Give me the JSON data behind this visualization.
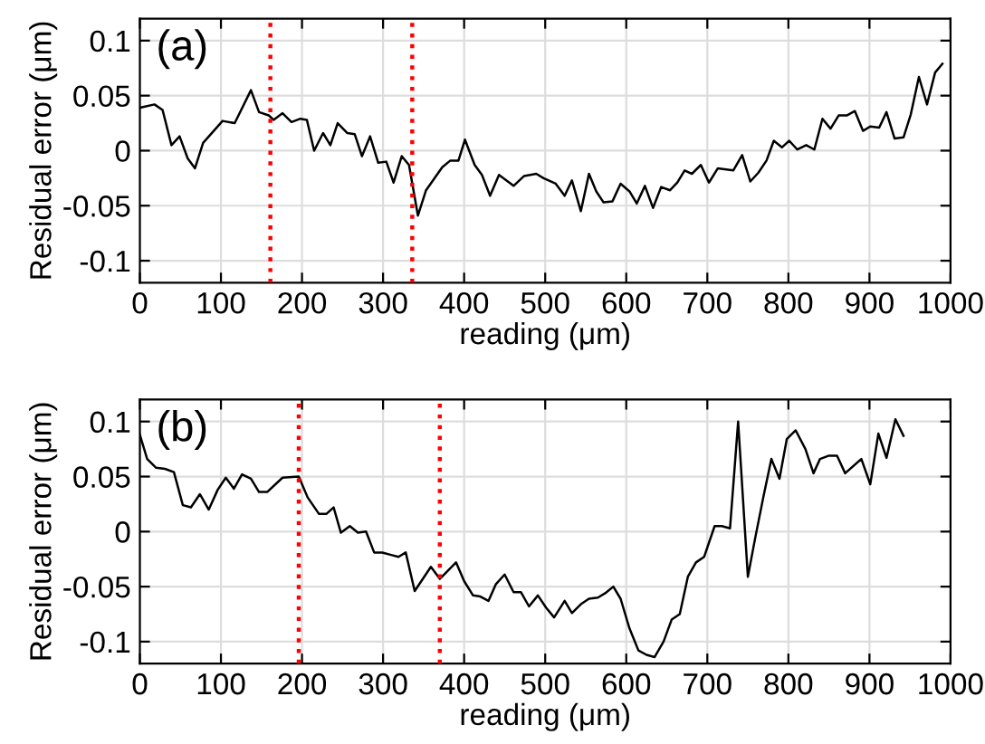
{
  "chart_data": [
    {
      "type": "line",
      "xlabel": "reading (μm)",
      "ylabel": "Residual error (μm)",
      "annotations": [
        "(a)"
      ],
      "xlim": [
        0,
        1000
      ],
      "ylim": [
        -0.12,
        0.12
      ],
      "xticks": [
        0,
        100,
        200,
        300,
        400,
        500,
        600,
        700,
        800,
        900,
        1000
      ],
      "yticks": [
        {
          "value": -0.1,
          "label": "-0.1"
        },
        {
          "value": -0.05,
          "label": "-0.05"
        },
        {
          "value": 0,
          "label": "0"
        },
        {
          "value": 0.05,
          "label": "0.05"
        },
        {
          "value": 0.1,
          "label": "0.1"
        }
      ],
      "grid": true,
      "line_style": "solid",
      "ref_lines": [
        {
          "axis": "x",
          "value": 161,
          "color": "#ff0000",
          "line_style": "dotted"
        },
        {
          "axis": "x",
          "value": 336,
          "color": "#ff0000",
          "line_style": "dotted"
        }
      ],
      "series": [
        {
          "color": "#000000",
          "x": [
            0,
            18,
            28,
            39,
            49,
            59,
            68,
            78,
            102,
            117,
            137,
            147,
            159,
            165,
            176,
            187,
            198,
            206,
            215,
            226,
            235,
            244,
            256,
            265,
            274,
            284,
            294,
            304,
            313,
            323,
            332,
            343,
            353,
            373,
            383,
            393,
            401,
            413,
            422,
            432,
            443,
            461,
            474,
            489,
            498,
            513,
            524,
            533,
            544,
            554,
            563,
            572,
            583,
            593,
            604,
            613,
            623,
            633,
            643,
            654,
            663,
            672,
            681,
            692,
            702,
            713,
            732,
            743,
            753,
            763,
            773,
            782,
            792,
            801,
            811,
            822,
            832,
            842,
            852,
            862,
            872,
            882,
            892,
            901,
            912,
            921,
            931,
            942,
            951,
            961,
            971,
            981,
            990
          ],
          "values": [
            0.039,
            0.042,
            0.037,
            0.005,
            0.013,
            -0.007,
            -0.016,
            0.007,
            0.027,
            0.025,
            0.055,
            0.035,
            0.032,
            0.028,
            0.034,
            0.026,
            0.029,
            0.028,
            0.0,
            0.016,
            0.005,
            0.025,
            0.016,
            0.015,
            -0.005,
            0.013,
            -0.011,
            -0.01,
            -0.029,
            -0.005,
            -0.013,
            -0.059,
            -0.036,
            -0.015,
            -0.009,
            -0.009,
            0.01,
            -0.013,
            -0.022,
            -0.041,
            -0.022,
            -0.032,
            -0.023,
            -0.021,
            -0.025,
            -0.03,
            -0.041,
            -0.027,
            -0.055,
            -0.021,
            -0.037,
            -0.047,
            -0.046,
            -0.03,
            -0.037,
            -0.048,
            -0.032,
            -0.052,
            -0.033,
            -0.036,
            -0.029,
            -0.018,
            -0.021,
            -0.013,
            -0.029,
            -0.016,
            -0.018,
            -0.004,
            -0.028,
            -0.02,
            -0.009,
            0.009,
            0.003,
            0.009,
            0.001,
            0.005,
            0.001,
            0.029,
            0.02,
            0.032,
            0.032,
            0.036,
            0.018,
            0.022,
            0.021,
            0.035,
            0.011,
            0.012,
            0.033,
            0.067,
            0.042,
            0.071,
            0.079
          ]
        }
      ]
    },
    {
      "type": "line",
      "xlabel": "reading (μm)",
      "ylabel": "Residual error (μm)",
      "annotations": [
        "(b)"
      ],
      "xlim": [
        0,
        1000
      ],
      "ylim": [
        -0.12,
        0.12
      ],
      "xticks": [
        0,
        100,
        200,
        300,
        400,
        500,
        600,
        700,
        800,
        900,
        1000
      ],
      "yticks": [
        {
          "value": -0.1,
          "label": "-0.1"
        },
        {
          "value": -0.05,
          "label": "-0.05"
        },
        {
          "value": 0,
          "label": "0"
        },
        {
          "value": 0.05,
          "label": "0.05"
        },
        {
          "value": 0.1,
          "label": "0.1"
        }
      ],
      "grid": true,
      "line_style": "solid",
      "ref_lines": [
        {
          "axis": "x",
          "value": 196,
          "color": "#ff0000",
          "line_style": "dotted"
        },
        {
          "axis": "x",
          "value": 370,
          "color": "#ff0000",
          "line_style": "dotted"
        }
      ],
      "series": [
        {
          "color": "#000000",
          "x": [
            0,
            9,
            20,
            31,
            42,
            53,
            63,
            74,
            85,
            96,
            106,
            116,
            126,
            137,
            147,
            157,
            176,
            196,
            207,
            221,
            230,
            239,
            248,
            259,
            269,
            279,
            289,
            299,
            309,
            319,
            328,
            339,
            359,
            370,
            390,
            400,
            411,
            420,
            430,
            439,
            450,
            461,
            470,
            480,
            491,
            501,
            511,
            524,
            533,
            544,
            554,
            565,
            574,
            584,
            593,
            604,
            615,
            625,
            635,
            646,
            656,
            666,
            676,
            686,
            696,
            709,
            718,
            728,
            738,
            750,
            759,
            769,
            779,
            789,
            798,
            809,
            821,
            831,
            839,
            850,
            860,
            870,
            890,
            901,
            911,
            921,
            932,
            942
          ],
          "values": [
            0.088,
            0.066,
            0.058,
            0.057,
            0.054,
            0.024,
            0.022,
            0.034,
            0.02,
            0.038,
            0.049,
            0.039,
            0.052,
            0.048,
            0.036,
            0.036,
            0.049,
            0.05,
            0.031,
            0.016,
            0.016,
            0.022,
            -0.001,
            0.005,
            -0.001,
            0.0,
            -0.019,
            -0.019,
            -0.021,
            -0.023,
            -0.019,
            -0.054,
            -0.032,
            -0.043,
            -0.028,
            -0.045,
            -0.058,
            -0.059,
            -0.063,
            -0.048,
            -0.039,
            -0.055,
            -0.055,
            -0.068,
            -0.058,
            -0.069,
            -0.078,
            -0.063,
            -0.074,
            -0.066,
            -0.061,
            -0.06,
            -0.056,
            -0.05,
            -0.061,
            -0.088,
            -0.108,
            -0.112,
            -0.114,
            -0.1,
            -0.08,
            -0.075,
            -0.041,
            -0.028,
            -0.023,
            0.005,
            0.005,
            0.003,
            0.1,
            -0.041,
            -0.006,
            0.031,
            0.066,
            0.048,
            0.084,
            0.092,
            0.075,
            0.053,
            0.066,
            0.069,
            0.069,
            0.053,
            0.066,
            0.043,
            0.089,
            0.067,
            0.102,
            0.087
          ]
        }
      ]
    }
  ]
}
